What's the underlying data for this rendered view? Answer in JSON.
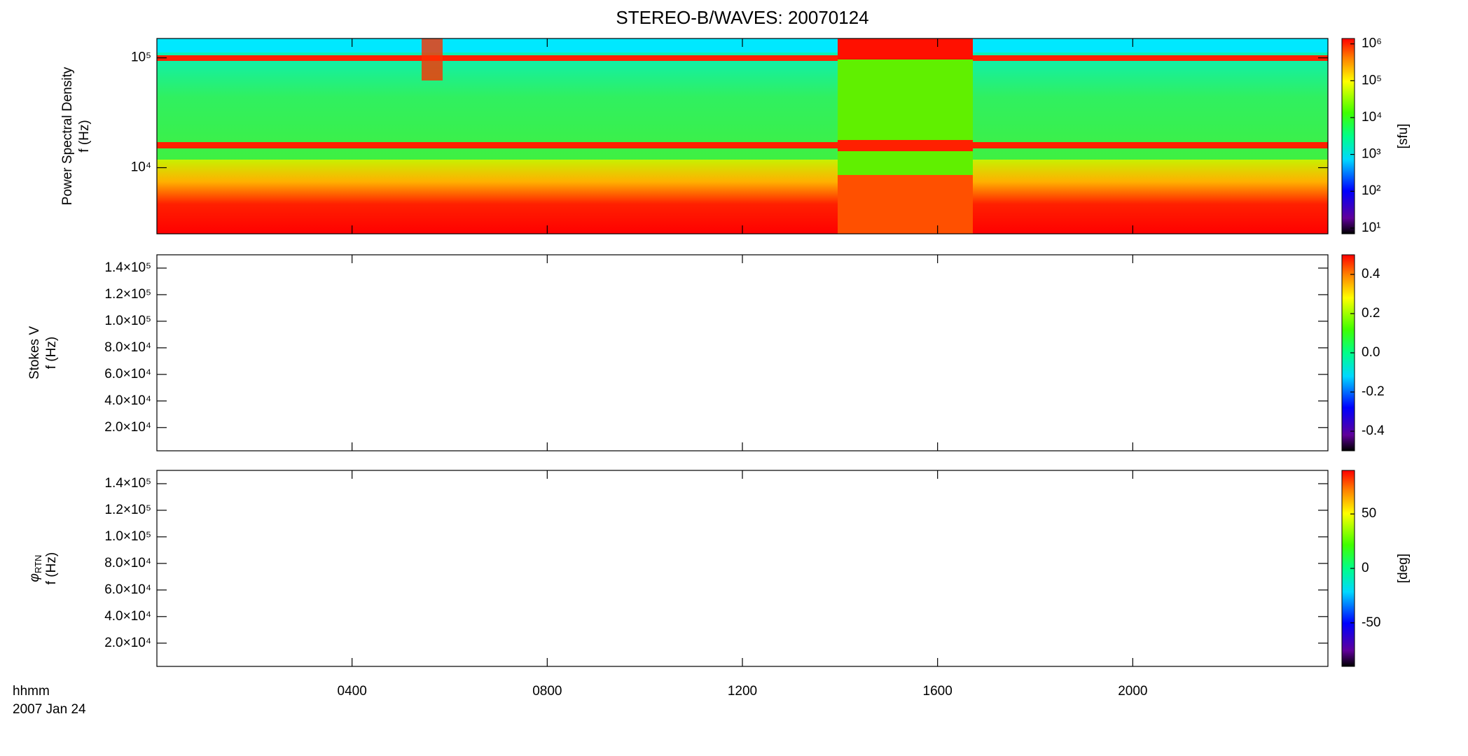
{
  "chart_data": [
    {
      "type": "spectrogram",
      "title": "STEREO-B/WAVES: 20070124",
      "ylabel": [
        "Power Spectral Density",
        "f (Hz)"
      ],
      "ylog": true,
      "ylim": [
        2500,
        150000
      ],
      "yticks": [
        {
          "value": 10000,
          "label": "10⁴"
        },
        {
          "value": 100000,
          "label": "10⁵"
        }
      ],
      "colorbar": {
        "log": true,
        "clim": [
          7,
          1400000
        ],
        "label": "[sfu]",
        "ticks": [
          {
            "value": 10,
            "label": "10¹"
          },
          {
            "value": 100,
            "label": "10²"
          },
          {
            "value": 1000,
            "label": "10³"
          },
          {
            "value": 10000,
            "label": "10⁴"
          },
          {
            "value": 100000,
            "label": "10⁵"
          },
          {
            "value": 1000000,
            "label": "10⁶"
          }
        ]
      }
    },
    {
      "type": "spectrogram",
      "ylabel": [
        "Stokes V",
        "f (Hz)"
      ],
      "ylog": false,
      "ylim": [
        2500,
        150000
      ],
      "yticks": [
        {
          "value": 20000,
          "label": "2.0×10⁴"
        },
        {
          "value": 40000,
          "label": "4.0×10⁴"
        },
        {
          "value": 60000,
          "label": "6.0×10⁴"
        },
        {
          "value": 80000,
          "label": "8.0×10⁴"
        },
        {
          "value": 100000,
          "label": "1.0×10⁵"
        },
        {
          "value": 120000,
          "label": "1.2×10⁵"
        },
        {
          "value": 140000,
          "label": "1.4×10⁵"
        }
      ],
      "colorbar": {
        "log": false,
        "clim": [
          -0.5,
          0.5
        ],
        "ticks": [
          -0.4,
          -0.2,
          {
            "value": 0,
            "label": "0.0"
          },
          0.2,
          0.4
        ]
      }
    },
    {
      "type": "spectrogram",
      "ylabel_symbol": "φ",
      "ylabel_subscript": "RTN",
      "ylabel": [
        "f (Hz)"
      ],
      "ylog": false,
      "ylim": [
        2500,
        150000
      ],
      "yticks": [
        {
          "value": 20000,
          "label": "2.0×10⁴"
        },
        {
          "value": 40000,
          "label": "4.0×10⁴"
        },
        {
          "value": 60000,
          "label": "6.0×10⁴"
        },
        {
          "value": 80000,
          "label": "8.0×10⁴"
        },
        {
          "value": 100000,
          "label": "1.0×10⁵"
        },
        {
          "value": 120000,
          "label": "1.2×10⁵"
        },
        {
          "value": 140000,
          "label": "1.4×10⁵"
        }
      ],
      "colorbar": {
        "log": false,
        "clim": [
          -90,
          90
        ],
        "label": "[deg]",
        "ticks": [
          -50,
          0,
          50
        ]
      }
    },
    {
      "type": "time-axis",
      "xlabel": "hhmm",
      "date": "2007 Jan 24",
      "xlim": [
        0,
        24
      ],
      "xticks": [
        {
          "value": 4,
          "label": "0400"
        },
        {
          "value": 8,
          "label": "0800"
        },
        {
          "value": 12,
          "label": "1200"
        },
        {
          "value": 16,
          "label": "1600"
        },
        {
          "value": 20,
          "label": "2000"
        }
      ]
    }
  ]
}
